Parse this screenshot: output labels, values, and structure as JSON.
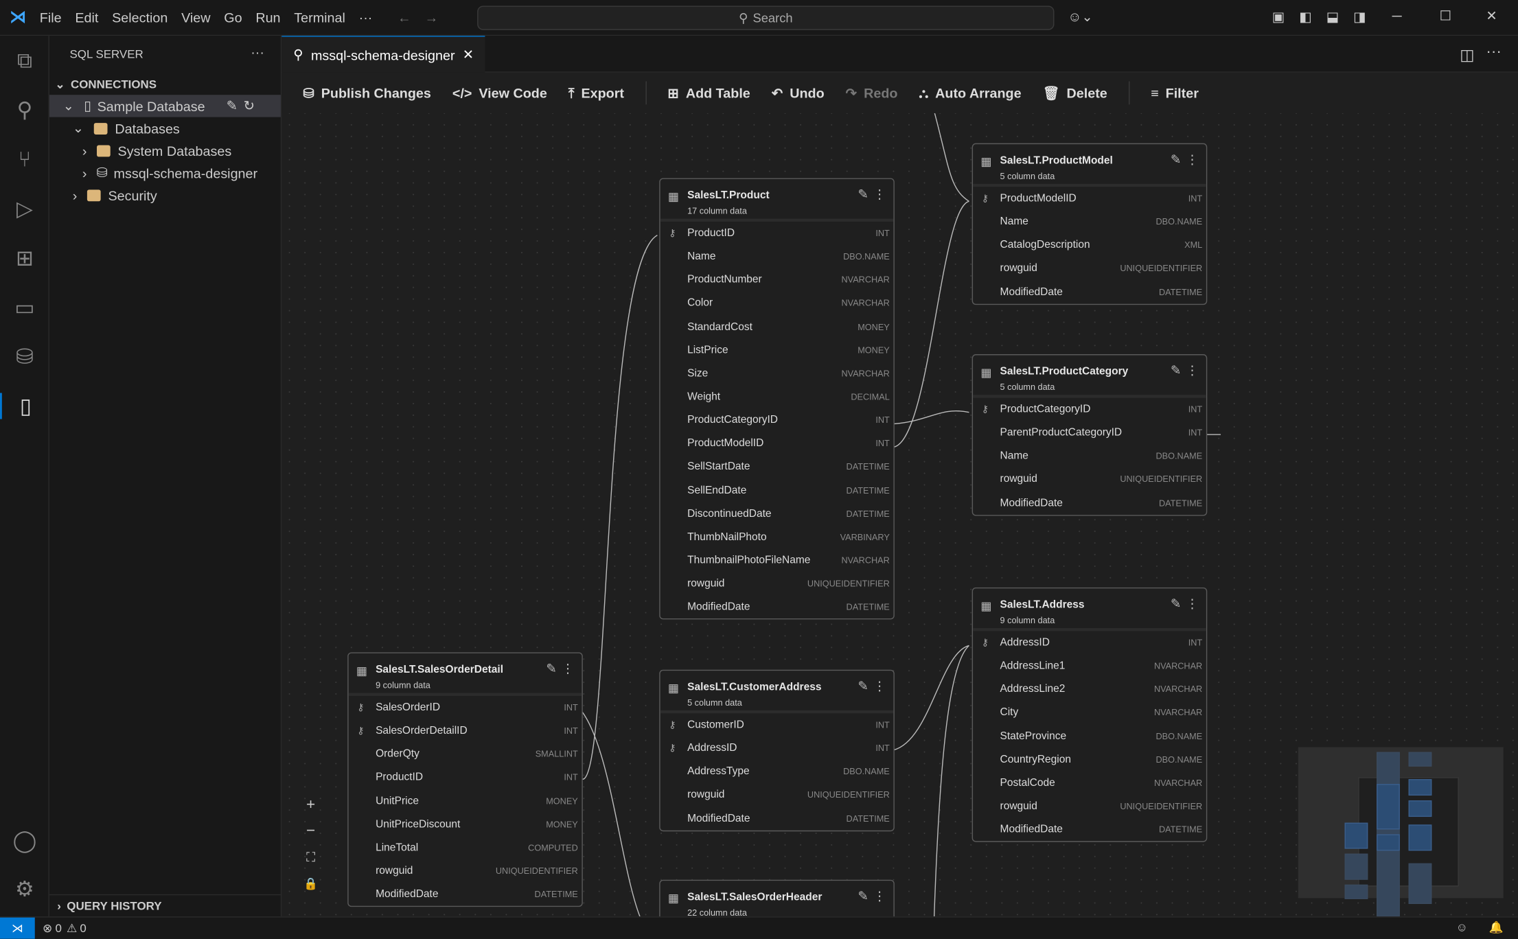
{
  "titlebar": {
    "menus": [
      "File",
      "Edit",
      "Selection",
      "View",
      "Go",
      "Run",
      "Terminal",
      "···"
    ],
    "search_placeholder": "Search"
  },
  "sidebar": {
    "title": "SQL SERVER",
    "more": "···",
    "connections_label": "CONNECTIONS",
    "query_history_label": "QUERY HISTORY",
    "tree": [
      {
        "label": "Sample Database",
        "icon": "server-icon"
      },
      {
        "label": "Databases",
        "icon": "folder-icon"
      },
      {
        "label": "System Databases",
        "icon": "folder-icon"
      },
      {
        "label": "mssql-schema-designer",
        "icon": "database-icon"
      },
      {
        "label": "Security",
        "icon": "folder-icon"
      }
    ]
  },
  "tab": {
    "label": "mssql-schema-designer"
  },
  "toolbar": {
    "publish": "Publish Changes",
    "view_code": "View Code",
    "export": "Export",
    "add_table": "Add Table",
    "undo": "Undo",
    "redo": "Redo",
    "auto_arrange": "Auto Arrange",
    "delete": "Delete",
    "filter": "Filter"
  },
  "tables": [
    {
      "name": "SalesLT.Product",
      "subtitle": "17 column data",
      "columns": [
        [
          "ProductID",
          "INT",
          1
        ],
        [
          "Name",
          "DBO.NAME",
          0
        ],
        [
          "ProductNumber",
          "NVARCHAR",
          0
        ],
        [
          "Color",
          "NVARCHAR",
          0
        ],
        [
          "StandardCost",
          "MONEY",
          0
        ],
        [
          "ListPrice",
          "MONEY",
          0
        ],
        [
          "Size",
          "NVARCHAR",
          0
        ],
        [
          "Weight",
          "DECIMAL",
          0
        ],
        [
          "ProductCategoryID",
          "INT",
          0
        ],
        [
          "ProductModelID",
          "INT",
          0
        ],
        [
          "SellStartDate",
          "DATETIME",
          0
        ],
        [
          "SellEndDate",
          "DATETIME",
          0
        ],
        [
          "DiscontinuedDate",
          "DATETIME",
          0
        ],
        [
          "ThumbNailPhoto",
          "VARBINARY",
          0
        ],
        [
          "ThumbnailPhotoFileName",
          "NVARCHAR",
          0
        ],
        [
          "rowguid",
          "UNIQUEIDENTIFIER",
          0
        ],
        [
          "ModifiedDate",
          "DATETIME",
          0
        ]
      ]
    },
    {
      "name": "SalesLT.ProductModel",
      "subtitle": "5 column data",
      "columns": [
        [
          "ProductModelID",
          "INT",
          1
        ],
        [
          "Name",
          "DBO.NAME",
          0
        ],
        [
          "CatalogDescription",
          "XML",
          0
        ],
        [
          "rowguid",
          "UNIQUEIDENTIFIER",
          0
        ],
        [
          "ModifiedDate",
          "DATETIME",
          0
        ]
      ]
    },
    {
      "name": "SalesLT.ProductCategory",
      "subtitle": "5 column data",
      "columns": [
        [
          "ProductCategoryID",
          "INT",
          1
        ],
        [
          "ParentProductCategoryID",
          "INT",
          0
        ],
        [
          "Name",
          "DBO.NAME",
          0
        ],
        [
          "rowguid",
          "UNIQUEIDENTIFIER",
          0
        ],
        [
          "ModifiedDate",
          "DATETIME",
          0
        ]
      ]
    },
    {
      "name": "SalesLT.Address",
      "subtitle": "9 column data",
      "columns": [
        [
          "AddressID",
          "INT",
          1
        ],
        [
          "AddressLine1",
          "NVARCHAR",
          0
        ],
        [
          "AddressLine2",
          "NVARCHAR",
          0
        ],
        [
          "City",
          "NVARCHAR",
          0
        ],
        [
          "StateProvince",
          "DBO.NAME",
          0
        ],
        [
          "CountryRegion",
          "DBO.NAME",
          0
        ],
        [
          "PostalCode",
          "NVARCHAR",
          0
        ],
        [
          "rowguid",
          "UNIQUEIDENTIFIER",
          0
        ],
        [
          "ModifiedDate",
          "DATETIME",
          0
        ]
      ]
    },
    {
      "name": "SalesLT.SalesOrderDetail",
      "subtitle": "9 column data",
      "columns": [
        [
          "SalesOrderID",
          "INT",
          1
        ],
        [
          "SalesOrderDetailID",
          "INT",
          1
        ],
        [
          "OrderQty",
          "SMALLINT",
          0
        ],
        [
          "ProductID",
          "INT",
          0
        ],
        [
          "UnitPrice",
          "MONEY",
          0
        ],
        [
          "UnitPriceDiscount",
          "MONEY",
          0
        ],
        [
          "LineTotal",
          "COMPUTED",
          0
        ],
        [
          "rowguid",
          "UNIQUEIDENTIFIER",
          0
        ],
        [
          "ModifiedDate",
          "DATETIME",
          0
        ]
      ]
    },
    {
      "name": "SalesLT.CustomerAddress",
      "subtitle": "5 column data",
      "columns": [
        [
          "CustomerID",
          "INT",
          1
        ],
        [
          "AddressID",
          "INT",
          1
        ],
        [
          "AddressType",
          "DBO.NAME",
          0
        ],
        [
          "rowguid",
          "UNIQUEIDENTIFIER",
          0
        ],
        [
          "ModifiedDate",
          "DATETIME",
          0
        ]
      ]
    },
    {
      "name": "SalesLT.SalesOrderHeader",
      "subtitle": "22 column data",
      "columns": []
    }
  ],
  "statusbar": {
    "errors": "0",
    "warnings": "0"
  },
  "colors": {
    "accent": "#0078d4",
    "minimap_table": "#2c4d74",
    "folder": "#dcb67a"
  }
}
